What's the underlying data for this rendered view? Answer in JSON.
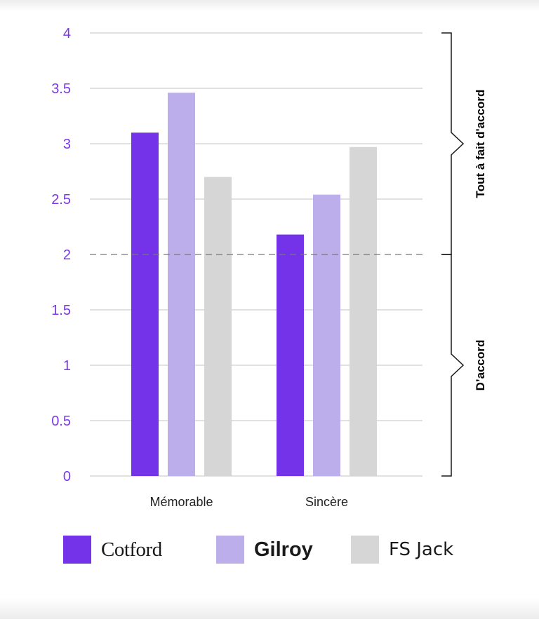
{
  "chart_data": {
    "type": "bar",
    "categories": [
      "Mémorable",
      "Sincère"
    ],
    "series": [
      {
        "name": "Cotford",
        "values": [
          3.1,
          2.18
        ],
        "color": "#7433e8"
      },
      {
        "name": "Gilroy",
        "values": [
          3.46,
          2.54
        ],
        "color": "#bbaeea"
      },
      {
        "name": "FS Jack",
        "values": [
          2.7,
          2.97
        ],
        "color": "#d6d6d6"
      }
    ],
    "yticks": [
      "0",
      "0.5",
      "1",
      "1.5",
      "2",
      "2.5",
      "3",
      "3.5",
      "4"
    ],
    "ylim": [
      0,
      4
    ],
    "reference_line": 2,
    "brackets": [
      {
        "label": "Tout à fait d'accord",
        "from": 2,
        "to": 4
      },
      {
        "label": "D’accord",
        "from": 0,
        "to": 2
      }
    ],
    "title": "",
    "xlabel": "",
    "ylabel": "",
    "grid": true,
    "legend_position": "bottom"
  },
  "legend": {
    "items": [
      {
        "label": "Cotford"
      },
      {
        "label": "Gilroy"
      },
      {
        "label": "FS Jack"
      }
    ]
  }
}
